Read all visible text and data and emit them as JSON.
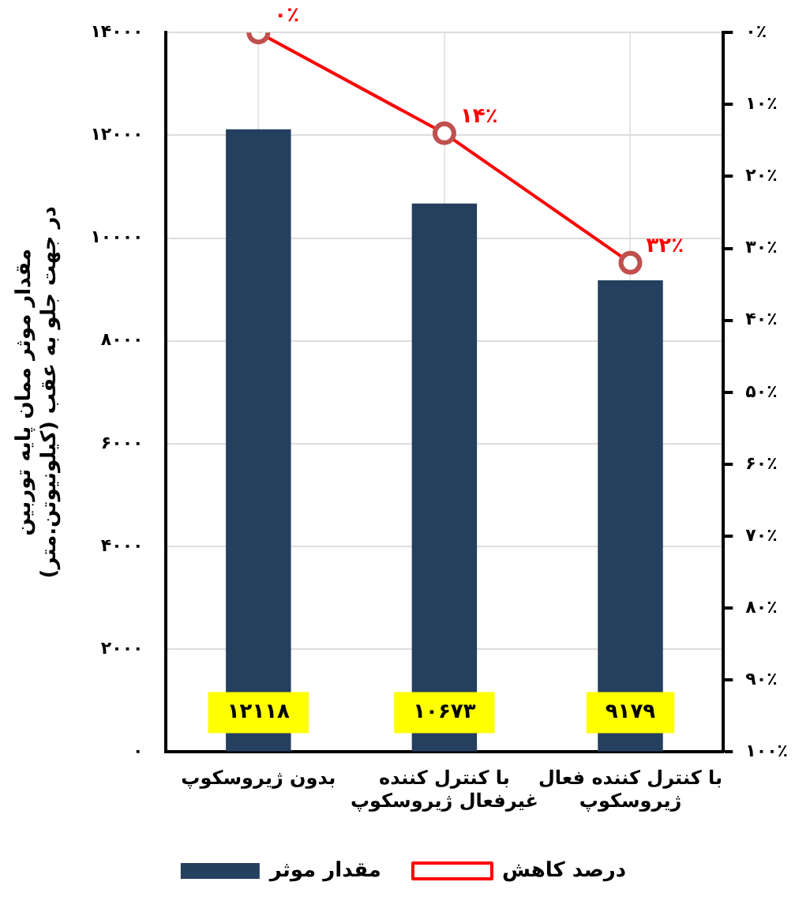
{
  "chart_data": {
    "type": "bar",
    "categories": [
      "بدون ژیروسکوپ",
      "با کنترل کننده\nغیرفعال ژیروسکوپ",
      "با کنترل کننده فعال\nژیروسکوپ"
    ],
    "ylabel": "مقدار موثر ممان پایه توربین\nدر جهت جلو به عقب (کیلونیوتن.متر)",
    "series": [
      {
        "name": "مقدار موثر",
        "color": "#253f5e",
        "values": [
          12118,
          10673,
          9179
        ],
        "value_labels": [
          "۱۲۱۱۸",
          "۱۰۶۷۳",
          "۹۱۷۹"
        ]
      },
      {
        "name": "درصد کاهش",
        "type": "line",
        "axis": "y2",
        "color": "#ff0000",
        "values": [
          0,
          14,
          32
        ],
        "value_labels": [
          "۰٪",
          "۱۴٪",
          "۳۲٪"
        ]
      }
    ],
    "ylim": [
      0,
      14000
    ],
    "yticks": [
      {
        "value": 0,
        "label": "۰"
      },
      {
        "value": 2000,
        "label": "۲۰۰۰"
      },
      {
        "value": 4000,
        "label": "۴۰۰۰"
      },
      {
        "value": 6000,
        "label": "۶۰۰۰"
      },
      {
        "value": 8000,
        "label": "۸۰۰۰"
      },
      {
        "value": 10000,
        "label": "۱۰۰۰۰"
      },
      {
        "value": 12000,
        "label": "۱۲۰۰۰"
      },
      {
        "value": 14000,
        "label": "۱۴۰۰۰"
      }
    ],
    "y2lim": [
      100,
      0
    ],
    "y2ticks": [
      {
        "value": 0,
        "label": "۰٪"
      },
      {
        "value": 10,
        "label": "۱۰٪"
      },
      {
        "value": 20,
        "label": "۲۰٪"
      },
      {
        "value": 30,
        "label": "۳۰٪"
      },
      {
        "value": 40,
        "label": "۴۰٪"
      },
      {
        "value": 50,
        "label": "۵۰٪"
      },
      {
        "value": 60,
        "label": "۶۰٪"
      },
      {
        "value": 70,
        "label": "۷۰٪"
      },
      {
        "value": 80,
        "label": "۸۰٪"
      },
      {
        "value": 90,
        "label": "۹۰٪"
      },
      {
        "value": 100,
        "label": "۱۰۰٪"
      }
    ],
    "grid": true,
    "legend": "bottom",
    "marker": "circle",
    "line_style": "solid"
  }
}
